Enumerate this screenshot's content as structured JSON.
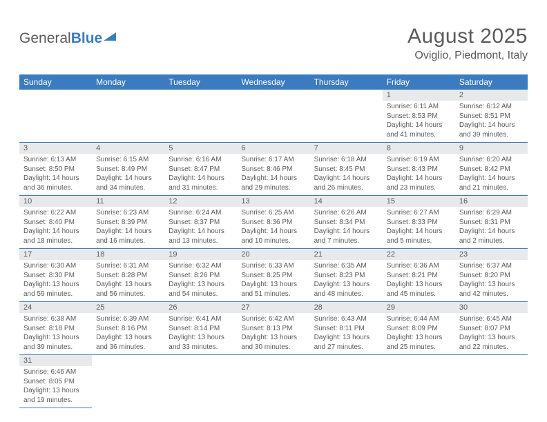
{
  "brand": {
    "general": "General",
    "blue": "Blue"
  },
  "title": "August 2025",
  "location": "Oviglio, Piedmont, Italy",
  "colors": {
    "accent": "#3b7bbf",
    "text": "#5a5a5a",
    "day_header_bg": "#e8e9ea",
    "background": "#ffffff"
  },
  "fonts": {
    "month_title_size": 30,
    "location_size": 16,
    "weekday_size": 12,
    "daynum_size": 11,
    "body_size": 10
  },
  "weekdays": [
    "Sunday",
    "Monday",
    "Tuesday",
    "Wednesday",
    "Thursday",
    "Friday",
    "Saturday"
  ],
  "days": [
    {
      "n": 1,
      "sunrise": "6:11 AM",
      "sunset": "8:53 PM",
      "daylight": "14 hours and 41 minutes."
    },
    {
      "n": 2,
      "sunrise": "6:12 AM",
      "sunset": "8:51 PM",
      "daylight": "14 hours and 39 minutes."
    },
    {
      "n": 3,
      "sunrise": "6:13 AM",
      "sunset": "8:50 PM",
      "daylight": "14 hours and 36 minutes."
    },
    {
      "n": 4,
      "sunrise": "6:15 AM",
      "sunset": "8:49 PM",
      "daylight": "14 hours and 34 minutes."
    },
    {
      "n": 5,
      "sunrise": "6:16 AM",
      "sunset": "8:47 PM",
      "daylight": "14 hours and 31 minutes."
    },
    {
      "n": 6,
      "sunrise": "6:17 AM",
      "sunset": "8:46 PM",
      "daylight": "14 hours and 29 minutes."
    },
    {
      "n": 7,
      "sunrise": "6:18 AM",
      "sunset": "8:45 PM",
      "daylight": "14 hours and 26 minutes."
    },
    {
      "n": 8,
      "sunrise": "6:19 AM",
      "sunset": "8:43 PM",
      "daylight": "14 hours and 23 minutes."
    },
    {
      "n": 9,
      "sunrise": "6:20 AM",
      "sunset": "8:42 PM",
      "daylight": "14 hours and 21 minutes."
    },
    {
      "n": 10,
      "sunrise": "6:22 AM",
      "sunset": "8:40 PM",
      "daylight": "14 hours and 18 minutes."
    },
    {
      "n": 11,
      "sunrise": "6:23 AM",
      "sunset": "8:39 PM",
      "daylight": "14 hours and 16 minutes."
    },
    {
      "n": 12,
      "sunrise": "6:24 AM",
      "sunset": "8:37 PM",
      "daylight": "14 hours and 13 minutes."
    },
    {
      "n": 13,
      "sunrise": "6:25 AM",
      "sunset": "8:36 PM",
      "daylight": "14 hours and 10 minutes."
    },
    {
      "n": 14,
      "sunrise": "6:26 AM",
      "sunset": "8:34 PM",
      "daylight": "14 hours and 7 minutes."
    },
    {
      "n": 15,
      "sunrise": "6:27 AM",
      "sunset": "8:33 PM",
      "daylight": "14 hours and 5 minutes."
    },
    {
      "n": 16,
      "sunrise": "6:29 AM",
      "sunset": "8:31 PM",
      "daylight": "14 hours and 2 minutes."
    },
    {
      "n": 17,
      "sunrise": "6:30 AM",
      "sunset": "8:30 PM",
      "daylight": "13 hours and 59 minutes."
    },
    {
      "n": 18,
      "sunrise": "6:31 AM",
      "sunset": "8:28 PM",
      "daylight": "13 hours and 56 minutes."
    },
    {
      "n": 19,
      "sunrise": "6:32 AM",
      "sunset": "8:26 PM",
      "daylight": "13 hours and 54 minutes."
    },
    {
      "n": 20,
      "sunrise": "6:33 AM",
      "sunset": "8:25 PM",
      "daylight": "13 hours and 51 minutes."
    },
    {
      "n": 21,
      "sunrise": "6:35 AM",
      "sunset": "8:23 PM",
      "daylight": "13 hours and 48 minutes."
    },
    {
      "n": 22,
      "sunrise": "6:36 AM",
      "sunset": "8:21 PM",
      "daylight": "13 hours and 45 minutes."
    },
    {
      "n": 23,
      "sunrise": "6:37 AM",
      "sunset": "8:20 PM",
      "daylight": "13 hours and 42 minutes."
    },
    {
      "n": 24,
      "sunrise": "6:38 AM",
      "sunset": "8:18 PM",
      "daylight": "13 hours and 39 minutes."
    },
    {
      "n": 25,
      "sunrise": "6:39 AM",
      "sunset": "8:16 PM",
      "daylight": "13 hours and 36 minutes."
    },
    {
      "n": 26,
      "sunrise": "6:41 AM",
      "sunset": "8:14 PM",
      "daylight": "13 hours and 33 minutes."
    },
    {
      "n": 27,
      "sunrise": "6:42 AM",
      "sunset": "8:13 PM",
      "daylight": "13 hours and 30 minutes."
    },
    {
      "n": 28,
      "sunrise": "6:43 AM",
      "sunset": "8:11 PM",
      "daylight": "13 hours and 27 minutes."
    },
    {
      "n": 29,
      "sunrise": "6:44 AM",
      "sunset": "8:09 PM",
      "daylight": "13 hours and 25 minutes."
    },
    {
      "n": 30,
      "sunrise": "6:45 AM",
      "sunset": "8:07 PM",
      "daylight": "13 hours and 22 minutes."
    },
    {
      "n": 31,
      "sunrise": "6:46 AM",
      "sunset": "8:05 PM",
      "daylight": "13 hours and 19 minutes."
    }
  ],
  "layout": {
    "first_weekday_index": 5,
    "rows": 6,
    "cols": 7
  },
  "labels": {
    "sunrise": "Sunrise:",
    "sunset": "Sunset:",
    "daylight": "Daylight:"
  }
}
